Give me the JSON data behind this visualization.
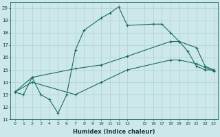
{
  "background_color": "#cce8e8",
  "grid_color": "#b0d0d0",
  "line_color": "#1a6b5a",
  "xlabel": "Humidex (Indice chaleur)",
  "ylim": [
    11,
    20.5
  ],
  "xlim": [
    -0.5,
    23.5
  ],
  "yticks": [
    11,
    12,
    13,
    14,
    15,
    16,
    17,
    18,
    19,
    20
  ],
  "xticks": [
    0,
    1,
    2,
    3,
    4,
    5,
    6,
    7,
    8,
    9,
    10,
    11,
    12,
    13,
    15,
    16,
    17,
    18,
    19,
    20,
    21,
    22,
    23
  ],
  "series": [
    {
      "x": [
        0,
        1,
        2,
        3,
        4,
        5,
        6,
        7,
        8,
        10,
        11,
        12,
        13,
        16,
        17,
        18,
        19,
        20,
        21,
        22,
        23
      ],
      "y": [
        13.2,
        13.0,
        14.4,
        13.0,
        12.6,
        11.5,
        13.0,
        16.6,
        18.2,
        19.2,
        19.6,
        20.1,
        18.6,
        18.7,
        18.7,
        18.0,
        17.3,
        16.5,
        15.3,
        15.0,
        15.0
      ]
    },
    {
      "x": [
        0,
        2,
        7,
        10,
        13,
        18,
        19,
        21,
        22,
        23
      ],
      "y": [
        13.2,
        14.4,
        15.1,
        15.4,
        16.1,
        17.3,
        17.3,
        16.8,
        15.3,
        15.0
      ]
    },
    {
      "x": [
        0,
        2,
        7,
        10,
        13,
        18,
        19,
        21,
        22,
        23
      ],
      "y": [
        13.2,
        14.0,
        13.0,
        14.0,
        15.0,
        15.8,
        15.8,
        15.5,
        15.2,
        14.9
      ]
    }
  ]
}
